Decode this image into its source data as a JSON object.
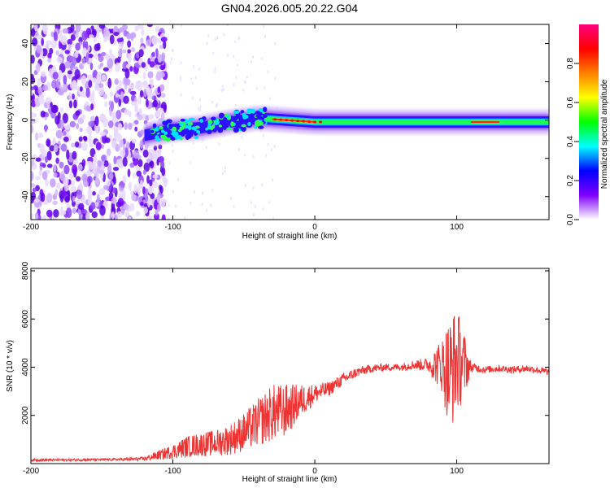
{
  "figure": {
    "title": "GN04.2026.005.20.22.G04"
  },
  "colors": {
    "snr_line": "#ee3333",
    "axis": "#000000",
    "background": "#ffffff"
  },
  "chart_data": [
    {
      "type": "heatmap",
      "name": "spectrogram",
      "title": "GN04.2026.005.20.22.G04",
      "xlabel": "Height of straight line (km)",
      "ylabel": "Frequency (Hz)",
      "xlim": [
        -200,
        165
      ],
      "ylim": [
        -52,
        50
      ],
      "xticks": [
        -200,
        -100,
        0,
        100
      ],
      "xtick_labels": [
        "-200",
        "-100",
        "0",
        "100"
      ],
      "yticks": [
        -40,
        -20,
        0,
        20,
        40
      ],
      "ytick_labels": [
        "-40",
        "-20",
        "0",
        "20",
        "40"
      ],
      "colorbar": {
        "label": "Normalized spectral amplitude",
        "range": [
          0,
          1
        ],
        "ticks": [
          0.0,
          0.2,
          0.4,
          0.6,
          0.8
        ],
        "tick_labels": [
          "0.0",
          "0.2",
          "0.4",
          "0.6",
          "0.8"
        ],
        "colormap": [
          "#ffffff",
          "#7f00ff",
          "#0000ff",
          "#00ffff",
          "#00ff00",
          "#ffff00",
          "#ff8000",
          "#ff0000",
          "#ff0080"
        ]
      },
      "ridge": {
        "description": "dominant spectral ridge near 0 Hz",
        "noise_region_x": [
          -200,
          -105
        ],
        "ridge_x": [
          -120,
          165
        ],
        "ridge_freq_hz": [
          [
            -120,
            -8
          ],
          [
            -100,
            -5
          ],
          [
            -80,
            -4
          ],
          [
            -60,
            -1
          ],
          [
            -40,
            1
          ],
          [
            -20,
            0
          ],
          [
            0,
            -1
          ],
          [
            100,
            -1
          ],
          [
            165,
            -1
          ]
        ],
        "peak_segments_x": [
          [
            -30,
            0
          ],
          [
            110,
            130
          ]
        ]
      }
    },
    {
      "type": "line",
      "name": "snr",
      "xlabel": "Height of straight line (km)",
      "ylabel": "SNR (10 * v/v)",
      "xlim": [
        -200,
        165
      ],
      "ylim": [
        0,
        8100
      ],
      "xticks": [
        -200,
        -100,
        0,
        100
      ],
      "xtick_labels": [
        "-200",
        "-100",
        "0",
        "100"
      ],
      "yticks": [
        2000,
        4000,
        6000,
        8000
      ],
      "ytick_labels": [
        "2000",
        "4000",
        "6000",
        "8000"
      ],
      "series": [
        {
          "name": "SNR",
          "x": [
            -200,
            -180,
            -160,
            -140,
            -120,
            -110,
            -100,
            -90,
            -80,
            -70,
            -60,
            -50,
            -40,
            -30,
            -20,
            -10,
            0,
            10,
            20,
            30,
            40,
            50,
            60,
            70,
            80,
            90,
            95,
            100,
            105,
            110,
            120,
            130,
            140,
            150,
            165
          ],
          "y": [
            150,
            150,
            160,
            170,
            200,
            350,
            500,
            700,
            800,
            850,
            1000,
            1300,
            1700,
            2100,
            2200,
            2600,
            2900,
            3100,
            3500,
            3800,
            3950,
            4000,
            4000,
            4100,
            4100,
            4100,
            3700,
            4300,
            4100,
            4000,
            3900,
            3950,
            3900,
            3950,
            3800
          ],
          "noise_amplitude": [
            50,
            50,
            50,
            50,
            80,
            200,
            300,
            450,
            500,
            550,
            650,
            800,
            1000,
            1200,
            1100,
            700,
            400,
            300,
            250,
            200,
            180,
            150,
            150,
            200,
            300,
            1200,
            2500,
            2200,
            1500,
            200,
            150,
            150,
            150,
            150,
            150
          ]
        }
      ]
    }
  ]
}
